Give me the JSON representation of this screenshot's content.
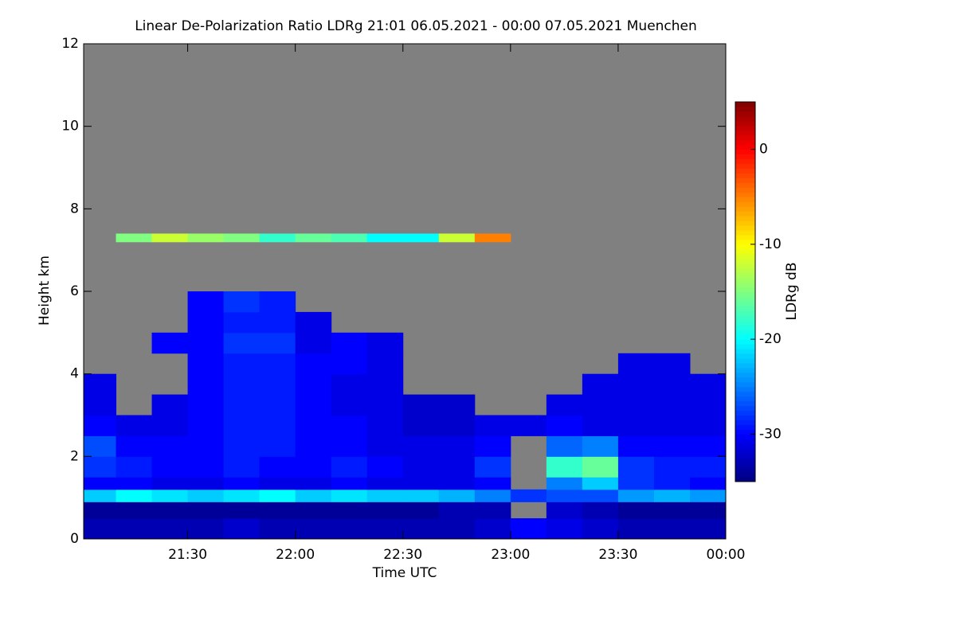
{
  "chart_data": {
    "type": "heatmap",
    "title": "Linear De-Polarization Ratio LDRg   21:01 06.05.2021 - 00:00 07.05.2021 Muenchen",
    "x_label": "Time UTC",
    "y_label": "Height km",
    "colorbar_label": "LDRg dB",
    "colormap": "jet",
    "missing_color": "#808080",
    "xlim": [
      1261,
      1440
    ],
    "xticks": [
      {
        "value": 1290,
        "label": "21:30"
      },
      {
        "value": 1320,
        "label": "22:00"
      },
      {
        "value": 1350,
        "label": "22:30"
      },
      {
        "value": 1380,
        "label": "23:00"
      },
      {
        "value": 1410,
        "label": "23:30"
      },
      {
        "value": 1440,
        "label": "00:00"
      }
    ],
    "ylim": [
      0,
      12
    ],
    "yticks": [
      0,
      2,
      4,
      6,
      8,
      10,
      12
    ],
    "clim": [
      -35,
      5
    ],
    "cticks": [
      0,
      -10,
      -20,
      -30
    ],
    "x_bins": [
      1261,
      1270,
      1280,
      1290,
      1300,
      1310,
      1320,
      1330,
      1340,
      1350,
      1360,
      1370,
      1380,
      1390,
      1400,
      1410,
      1420,
      1430,
      1440
    ],
    "y_bins": [
      0,
      0.5,
      0.9,
      1.2,
      1.5,
      2,
      2.5,
      3,
      3.5,
      4,
      4.5,
      5,
      5.5,
      6,
      7.2,
      7.4
    ],
    "z": [
      [
        -33,
        -33,
        -33,
        -33,
        -32,
        -33,
        -33,
        -33,
        -33,
        -33,
        -33,
        -32,
        -30,
        -31,
        -32,
        -33,
        -33,
        -33
      ],
      [
        -34,
        -34,
        -34,
        -34,
        -34,
        -34,
        -34,
        -34,
        -34,
        -34,
        -33,
        -33,
        null,
        -32,
        -33,
        -34,
        -34,
        -34
      ],
      [
        -22,
        -20,
        -21,
        -22,
        -21,
        -20,
        -22,
        -21,
        -22,
        -22,
        -23,
        -25,
        -28,
        -27,
        -27,
        -24,
        -23,
        -24
      ],
      [
        -30,
        -30,
        -31,
        -31,
        -30,
        -31,
        -31,
        -30,
        -31,
        -31,
        -31,
        -30,
        null,
        -25,
        -22,
        -28,
        -29,
        -30
      ],
      [
        -28,
        -29,
        -30,
        -30,
        -29,
        -30,
        -30,
        -29,
        -30,
        -31,
        -31,
        -28,
        null,
        -18,
        -16,
        -28,
        -29,
        -29
      ],
      [
        -27,
        -30,
        -30,
        -30,
        -29,
        -29,
        -30,
        -30,
        -31,
        -31,
        -31,
        -30,
        null,
        -26,
        -25,
        -30,
        -30,
        -30
      ],
      [
        -30,
        -31,
        -31,
        -30,
        -29,
        -29,
        -30,
        -30,
        -31,
        -32,
        -32,
        -31,
        -31,
        -30,
        -31,
        -31,
        -31,
        -31
      ],
      [
        -31,
        null,
        -31,
        -30,
        -29,
        -29,
        -30,
        -31,
        -31,
        -32,
        -32,
        null,
        null,
        -31,
        -31,
        -31,
        -31,
        -31
      ],
      [
        -31,
        null,
        null,
        -30,
        -29,
        -29,
        -30,
        -31,
        -31,
        null,
        null,
        null,
        null,
        null,
        -31,
        -31,
        -31,
        -31
      ],
      [
        null,
        null,
        null,
        -30,
        -29,
        -29,
        -30,
        -30,
        -31,
        null,
        null,
        null,
        null,
        null,
        null,
        -31,
        -31,
        null
      ],
      [
        null,
        null,
        -30,
        -30,
        -28,
        -28,
        -31,
        -30,
        -31,
        null,
        null,
        null,
        null,
        null,
        null,
        null,
        null,
        null
      ],
      [
        null,
        null,
        null,
        -30,
        -29,
        -29,
        -31,
        null,
        null,
        null,
        null,
        null,
        null,
        null,
        null,
        null,
        null,
        null
      ],
      [
        null,
        null,
        null,
        -30,
        -28,
        -29,
        null,
        null,
        null,
        null,
        null,
        null,
        null,
        null,
        null,
        null,
        null,
        null
      ],
      [
        null,
        null,
        null,
        null,
        null,
        null,
        null,
        null,
        null,
        null,
        null,
        null,
        null,
        null,
        null,
        null,
        null,
        null
      ],
      [
        null,
        -15,
        -12,
        -14,
        -15,
        -18,
        -16,
        -17,
        -20,
        -20,
        -12,
        -5,
        null,
        null,
        null,
        null,
        null,
        null
      ]
    ]
  }
}
